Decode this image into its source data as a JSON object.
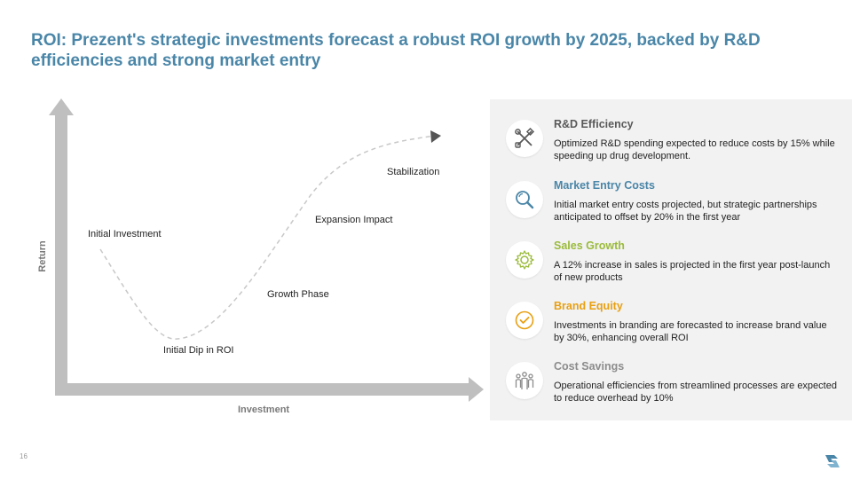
{
  "title": "ROI: Prezent's strategic investments forecast a robust ROI growth by 2025, backed by R&D efficiencies and strong market entry",
  "diagram": {
    "x_axis_label": "Investment",
    "y_axis_label": "Return",
    "stages": {
      "initial_investment": "Initial Investment",
      "initial_dip": "Initial Dip in ROI",
      "growth_phase": "Growth Phase",
      "expansion_impact": "Expansion Impact",
      "stabilization": "Stabilization"
    }
  },
  "colors": {
    "title": "#4a86a8",
    "axis": "#bfbfbf",
    "rd": "#595959",
    "market": "#4a86a8",
    "sales": "#9bbb3b",
    "brand": "#e8a013",
    "cost": "#8c8c8c"
  },
  "items": [
    {
      "title": "R&D Efficiency",
      "icon": "tools-icon",
      "description": "Optimized R&D spending expected to reduce costs by 15% while speeding up drug development."
    },
    {
      "title": "Market Entry Costs",
      "icon": "magnifier-icon",
      "description": "Initial market entry costs projected, but strategic partnerships anticipated to offset by 20% in the first year"
    },
    {
      "title": "Sales Growth",
      "icon": "gear-icon",
      "description": "A 12% increase in sales is projected in the first year post-launch of new products"
    },
    {
      "title": "Brand Equity",
      "icon": "checkmark-badge-icon",
      "description": "Investments in branding are forecasted to increase brand value by 30%, enhancing overall ROI"
    },
    {
      "title": "Cost Savings",
      "icon": "team-icon",
      "description": "Operational efficiencies from streamlined processes are expected to reduce overhead by 10%"
    }
  ],
  "page_number": "16"
}
